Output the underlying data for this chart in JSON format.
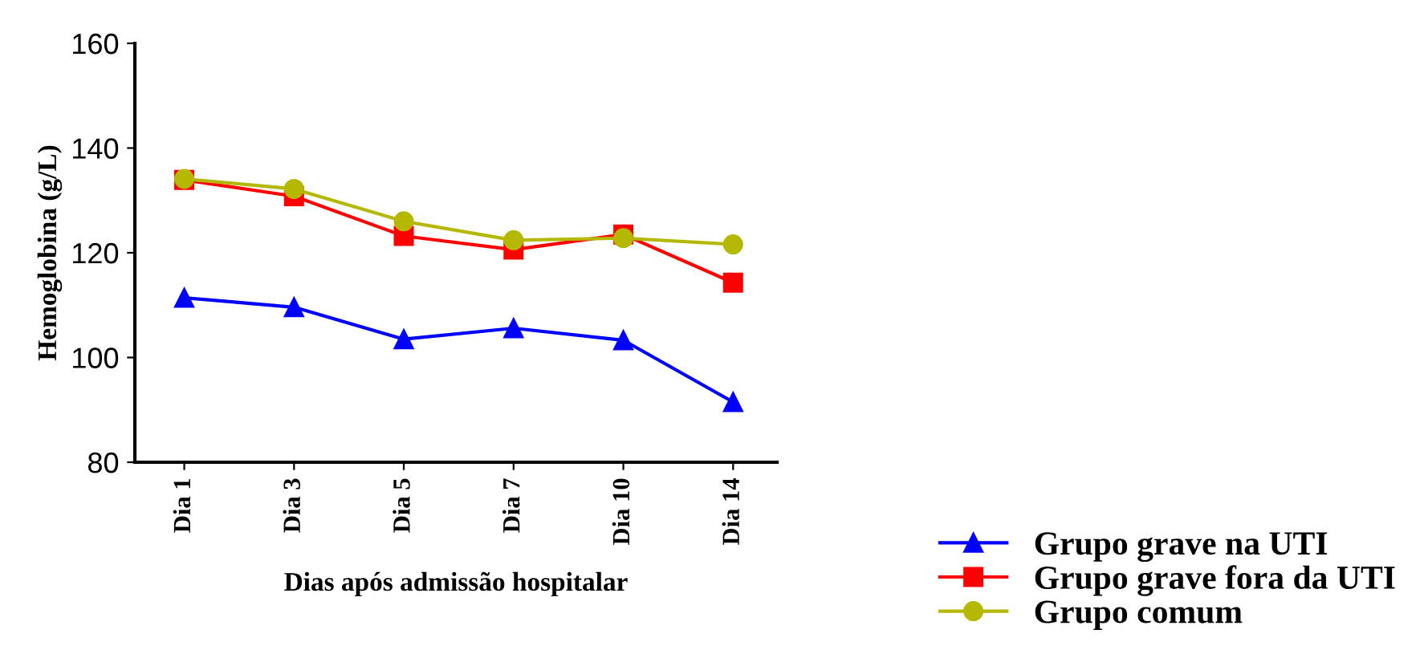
{
  "chart_data": {
    "type": "line",
    "xlabel": "Dias após admissão hospitalar",
    "ylabel": "Hemoglobina (g/L)",
    "categories": [
      "Dia 1",
      "Dia 3",
      "Dia 5",
      "Dia 7",
      "Dia 10",
      "Dia 14"
    ],
    "series": [
      {
        "name": "Grupo grave na UTI",
        "color": "#0000ff",
        "marker": "triangle",
        "values": [
          111.4,
          109.6,
          103.5,
          105.6,
          103.3,
          91.5
        ]
      },
      {
        "name": "Grupo grave fora da UTI",
        "color": "#ff0000",
        "marker": "square",
        "values": [
          133.9,
          130.8,
          123.2,
          120.6,
          123.5,
          114.3
        ]
      },
      {
        "name": "Grupo comum",
        "color": "#b5b800",
        "marker": "circle",
        "values": [
          134.1,
          132.2,
          126.0,
          122.4,
          122.8,
          121.6
        ]
      }
    ],
    "ylim": [
      80,
      160
    ],
    "yticks": [
      80,
      100,
      120,
      140,
      160
    ],
    "grid": false,
    "legend": "bottom right",
    "line_style": "solid"
  }
}
